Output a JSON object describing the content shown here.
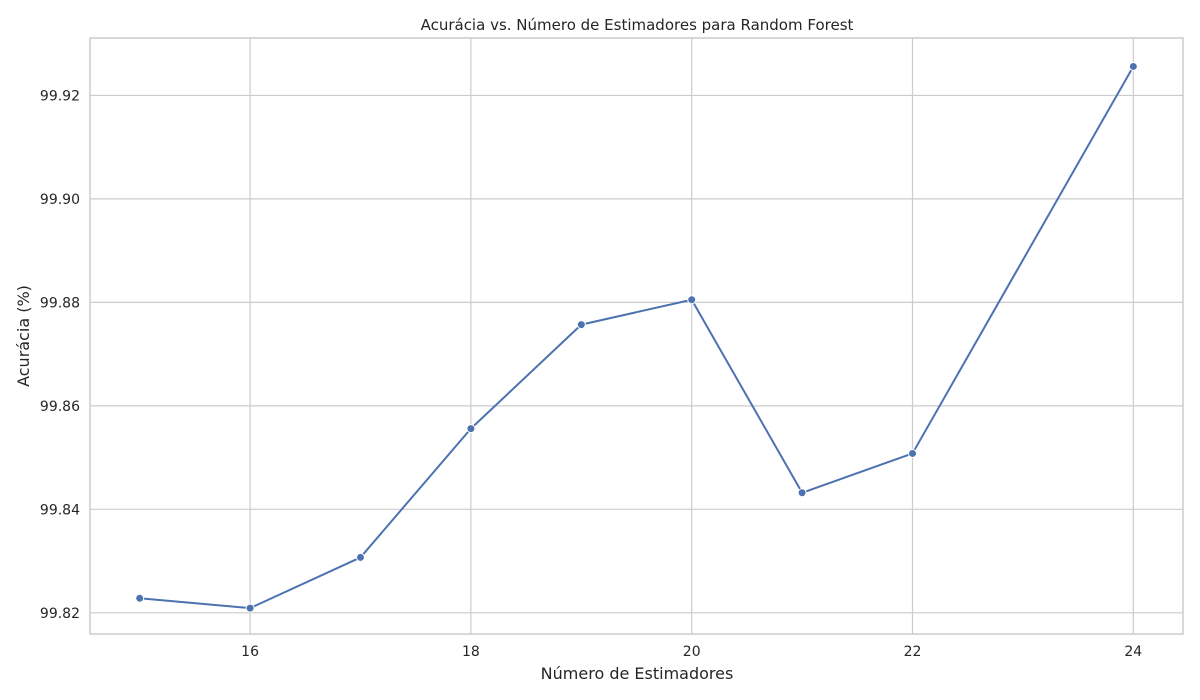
{
  "chart_data": {
    "type": "line",
    "title": "Acurácia vs. Número de Estimadores para Random Forest",
    "xlabel": "Número de Estimadores",
    "ylabel": "Acurácia (%)",
    "xlim": [
      14.55,
      24.45
    ],
    "ylim": [
      99.8159,
      99.9311
    ],
    "xticks": [
      16,
      18,
      20,
      22,
      24
    ],
    "yticks": [
      99.82,
      99.84,
      99.86,
      99.88,
      99.9,
      99.92
    ],
    "grid": true,
    "legend": "none",
    "series": [
      {
        "color": "#4c72b0",
        "x": [
          15,
          16,
          17,
          18,
          19,
          20,
          21,
          22,
          24
        ],
        "y": [
          99.8228,
          99.8209,
          99.8307,
          99.8556,
          99.8757,
          99.8805,
          99.8432,
          99.8508,
          99.9256
        ]
      }
    ]
  }
}
